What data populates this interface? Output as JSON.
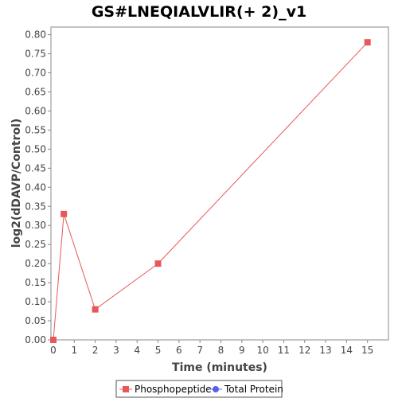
{
  "chart_data": {
    "type": "line",
    "title": "GS#LNEQIALVLIR(+ 2)_v1",
    "xlabel": "Time (minutes)",
    "ylabel": "log2(dDAVP/Control)",
    "xlim": [
      0,
      16
    ],
    "ylim": [
      0,
      0.82
    ],
    "x_ticks": [
      0,
      1,
      2,
      3,
      4,
      5,
      6,
      7,
      8,
      9,
      10,
      11,
      12,
      13,
      14,
      15
    ],
    "y_ticks": [
      "0.00",
      "0.05",
      "0.10",
      "0.15",
      "0.20",
      "0.25",
      "0.30",
      "0.35",
      "0.40",
      "0.45",
      "0.50",
      "0.55",
      "0.60",
      "0.65",
      "0.70",
      "0.75",
      "0.80"
    ],
    "grid": false,
    "legend_position": "bottom",
    "series": [
      {
        "name": "Phosphopeptide",
        "color": "#e8585a",
        "marker": "square",
        "points": [
          {
            "x": 0,
            "y": 0.0
          },
          {
            "x": 0.5,
            "y": 0.33
          },
          {
            "x": 2,
            "y": 0.08
          },
          {
            "x": 5,
            "y": 0.2
          },
          {
            "x": 15,
            "y": 0.78
          }
        ]
      },
      {
        "name": "Total Protein",
        "color": "#5c5cf0",
        "marker": "circle",
        "points": []
      }
    ]
  }
}
